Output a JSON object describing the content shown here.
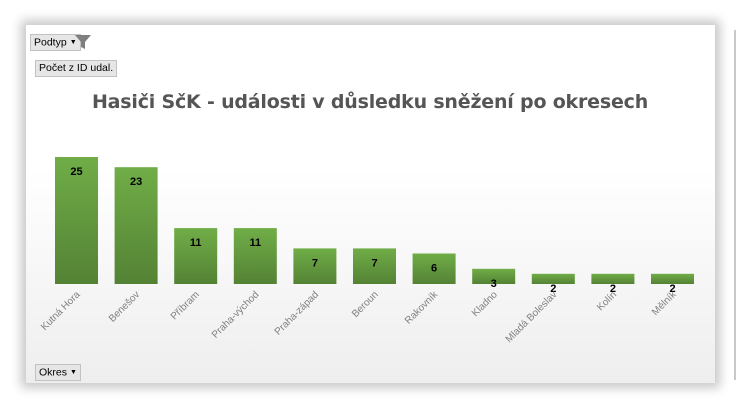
{
  "filters": {
    "subtype_label": "Podtyp",
    "values_label": "Počet z ID udal.",
    "axis_field_label": "Okres"
  },
  "colors": {
    "bar": "#70ad47",
    "bar_dark": "#548235",
    "label": "#000000",
    "axis_text": "#7f7f7f"
  },
  "chart_data": {
    "type": "bar",
    "title": "Hasiči SčK - události v důsledku sněžení po okresech",
    "xlabel": "",
    "ylabel": "",
    "categories": [
      "Kutná Hora",
      "Benešov",
      "Příbram",
      "Praha-východ",
      "Praha-západ",
      "Beroun",
      "Rakovník",
      "Kladno",
      "Mladá Boleslav",
      "Kolín",
      "Mělník"
    ],
    "values": [
      25,
      23,
      11,
      11,
      7,
      7,
      6,
      3,
      2,
      2,
      2
    ],
    "ylim": [
      0,
      25
    ],
    "grid": false,
    "legend": "none",
    "data_labels": true
  }
}
